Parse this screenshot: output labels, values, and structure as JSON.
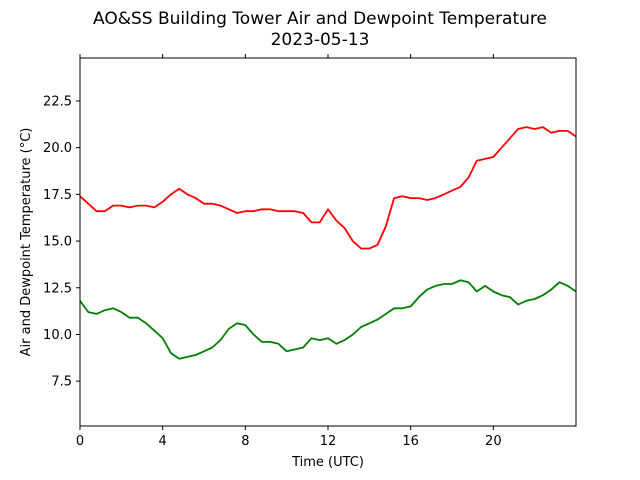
{
  "chart_data": {
    "type": "line",
    "title": "AO&SS Building Tower Air and Dewpoint Temperature",
    "subtitle": "2023-05-13",
    "xlabel": "Time (UTC)",
    "ylabel": "Air and Dewpoint Temperature (°C)",
    "xlim": [
      0,
      24
    ],
    "ylim": [
      5.1,
      24.8
    ],
    "x_ticks": [
      0,
      4,
      8,
      12,
      16,
      20
    ],
    "x_tick_labels": [
      "0",
      "4",
      "8",
      "12",
      "16",
      "20"
    ],
    "y_ticks": [
      7.5,
      10.0,
      12.5,
      15.0,
      17.5,
      20.0,
      22.5
    ],
    "y_tick_labels": [
      "7.5",
      "10.0",
      "12.5",
      "15.0",
      "17.5",
      "20.0",
      "22.5"
    ],
    "grid": false,
    "series": [
      {
        "color": "#ff0000",
        "x": [
          0,
          0.4,
          0.8,
          1.2,
          1.6,
          2.0,
          2.4,
          2.8,
          3.2,
          3.6,
          4.0,
          4.4,
          4.8,
          5.2,
          5.6,
          6.0,
          6.4,
          6.8,
          7.2,
          7.6,
          8.0,
          8.4,
          8.8,
          9.2,
          9.6,
          10.0,
          10.4,
          10.8,
          11.2,
          11.6,
          12.0,
          12.4,
          12.8,
          13.2,
          13.6,
          14.0,
          14.4,
          14.8,
          15.2,
          15.6,
          16.0,
          16.4,
          16.8,
          17.2,
          17.6,
          18.0,
          18.4,
          18.8,
          19.2,
          19.6,
          20.0,
          20.4,
          20.8,
          21.2,
          21.6,
          22.0,
          22.4,
          22.8,
          23.2,
          23.6,
          24.0
        ],
        "y": [
          17.4,
          17.0,
          16.6,
          16.6,
          16.9,
          16.9,
          16.8,
          16.9,
          16.9,
          16.8,
          17.1,
          17.5,
          17.8,
          17.5,
          17.3,
          17.0,
          17.0,
          16.9,
          16.7,
          16.5,
          16.6,
          16.6,
          16.7,
          16.7,
          16.6,
          16.6,
          16.6,
          16.5,
          16.0,
          16.0,
          16.7,
          16.1,
          15.7,
          15.0,
          14.6,
          14.6,
          14.8,
          15.8,
          17.3,
          17.4,
          17.3,
          17.3,
          17.2,
          17.3,
          17.5,
          17.7,
          17.9,
          18.4,
          19.3,
          19.4,
          19.5,
          20.0,
          20.5,
          21.0,
          21.1,
          21.0,
          21.1,
          20.8,
          20.9,
          20.9,
          20.6
        ]
      },
      {
        "color": "#008000",
        "x": [
          0,
          0.4,
          0.8,
          1.2,
          1.6,
          2.0,
          2.4,
          2.8,
          3.2,
          3.6,
          4.0,
          4.4,
          4.8,
          5.2,
          5.6,
          6.0,
          6.4,
          6.8,
          7.2,
          7.6,
          8.0,
          8.4,
          8.8,
          9.2,
          9.6,
          10.0,
          10.4,
          10.8,
          11.2,
          11.6,
          12.0,
          12.4,
          12.8,
          13.2,
          13.6,
          14.0,
          14.4,
          14.8,
          15.2,
          15.6,
          16.0,
          16.4,
          16.8,
          17.2,
          17.6,
          18.0,
          18.4,
          18.8,
          19.2,
          19.6,
          20.0,
          20.4,
          20.8,
          21.2,
          21.6,
          22.0,
          22.4,
          22.8,
          23.2,
          23.6,
          24.0
        ],
        "y": [
          11.8,
          11.2,
          11.1,
          11.3,
          11.4,
          11.2,
          10.9,
          10.9,
          10.6,
          10.2,
          9.8,
          9.0,
          8.7,
          8.8,
          8.9,
          9.1,
          9.3,
          9.7,
          10.3,
          10.6,
          10.5,
          10.0,
          9.6,
          9.6,
          9.5,
          9.1,
          9.2,
          9.3,
          9.8,
          9.7,
          9.8,
          9.5,
          9.7,
          10.0,
          10.4,
          10.6,
          10.8,
          11.1,
          11.4,
          11.4,
          11.5,
          12.0,
          12.4,
          12.6,
          12.7,
          12.7,
          12.9,
          12.8,
          12.3,
          12.6,
          12.3,
          12.1,
          12.0,
          11.6,
          11.8,
          11.9,
          12.1,
          12.4,
          12.8,
          12.6,
          12.3
        ]
      }
    ]
  }
}
